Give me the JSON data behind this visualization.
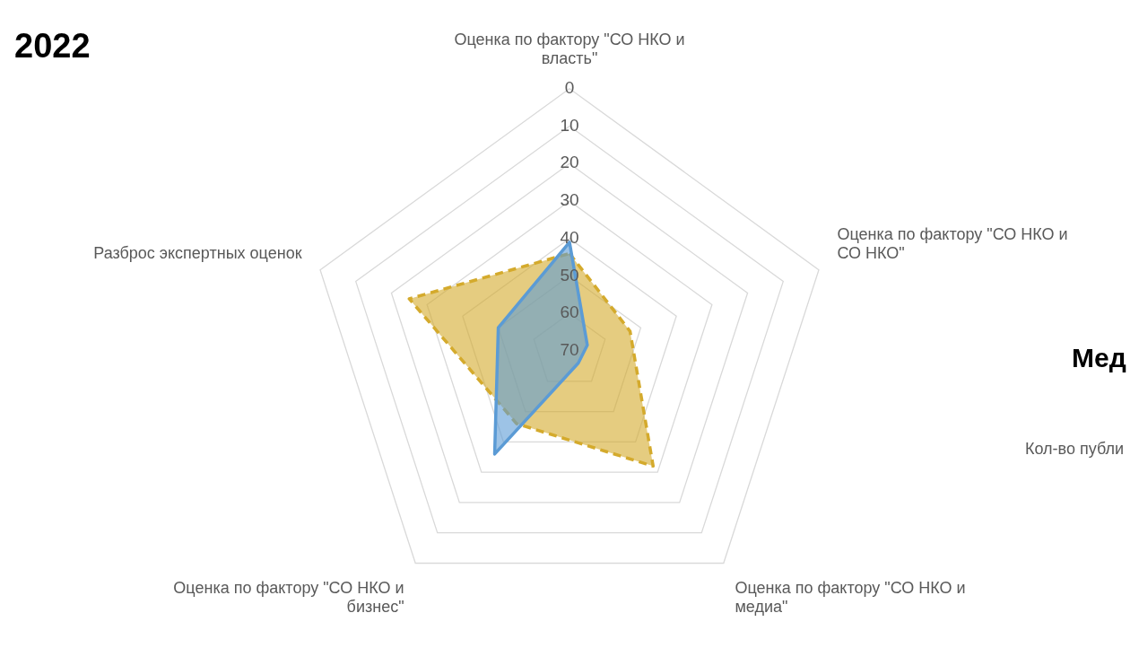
{
  "chart_data": {
    "type": "radar",
    "title": "2022",
    "categories": [
      "Оценка по фактору \"СО НКО и власть\"",
      "Оценка по фактору \"СО НКО и СО НКО\"",
      "Оценка по фактору \"СО НКО и медиа\"",
      "Оценка по фактору \"СО НКО и бизнес\"",
      "Разброс экспертных оценок"
    ],
    "series": [
      {
        "color": "#5b9bd5",
        "values": [
          41,
          65,
          66,
          36,
          50
        ],
        "line_style": "solid"
      },
      {
        "color": "#d4aa2c",
        "values": [
          44,
          53,
          32,
          46,
          25
        ],
        "line_style": "dashed"
      }
    ],
    "ylim": [
      70,
      0
    ],
    "yticks": [
      0,
      10,
      20,
      30,
      40,
      50,
      60,
      70
    ],
    "grid": true,
    "legend": false,
    "marker": "none",
    "annotations": [
      "Мед",
      "Кол-во публи"
    ]
  }
}
